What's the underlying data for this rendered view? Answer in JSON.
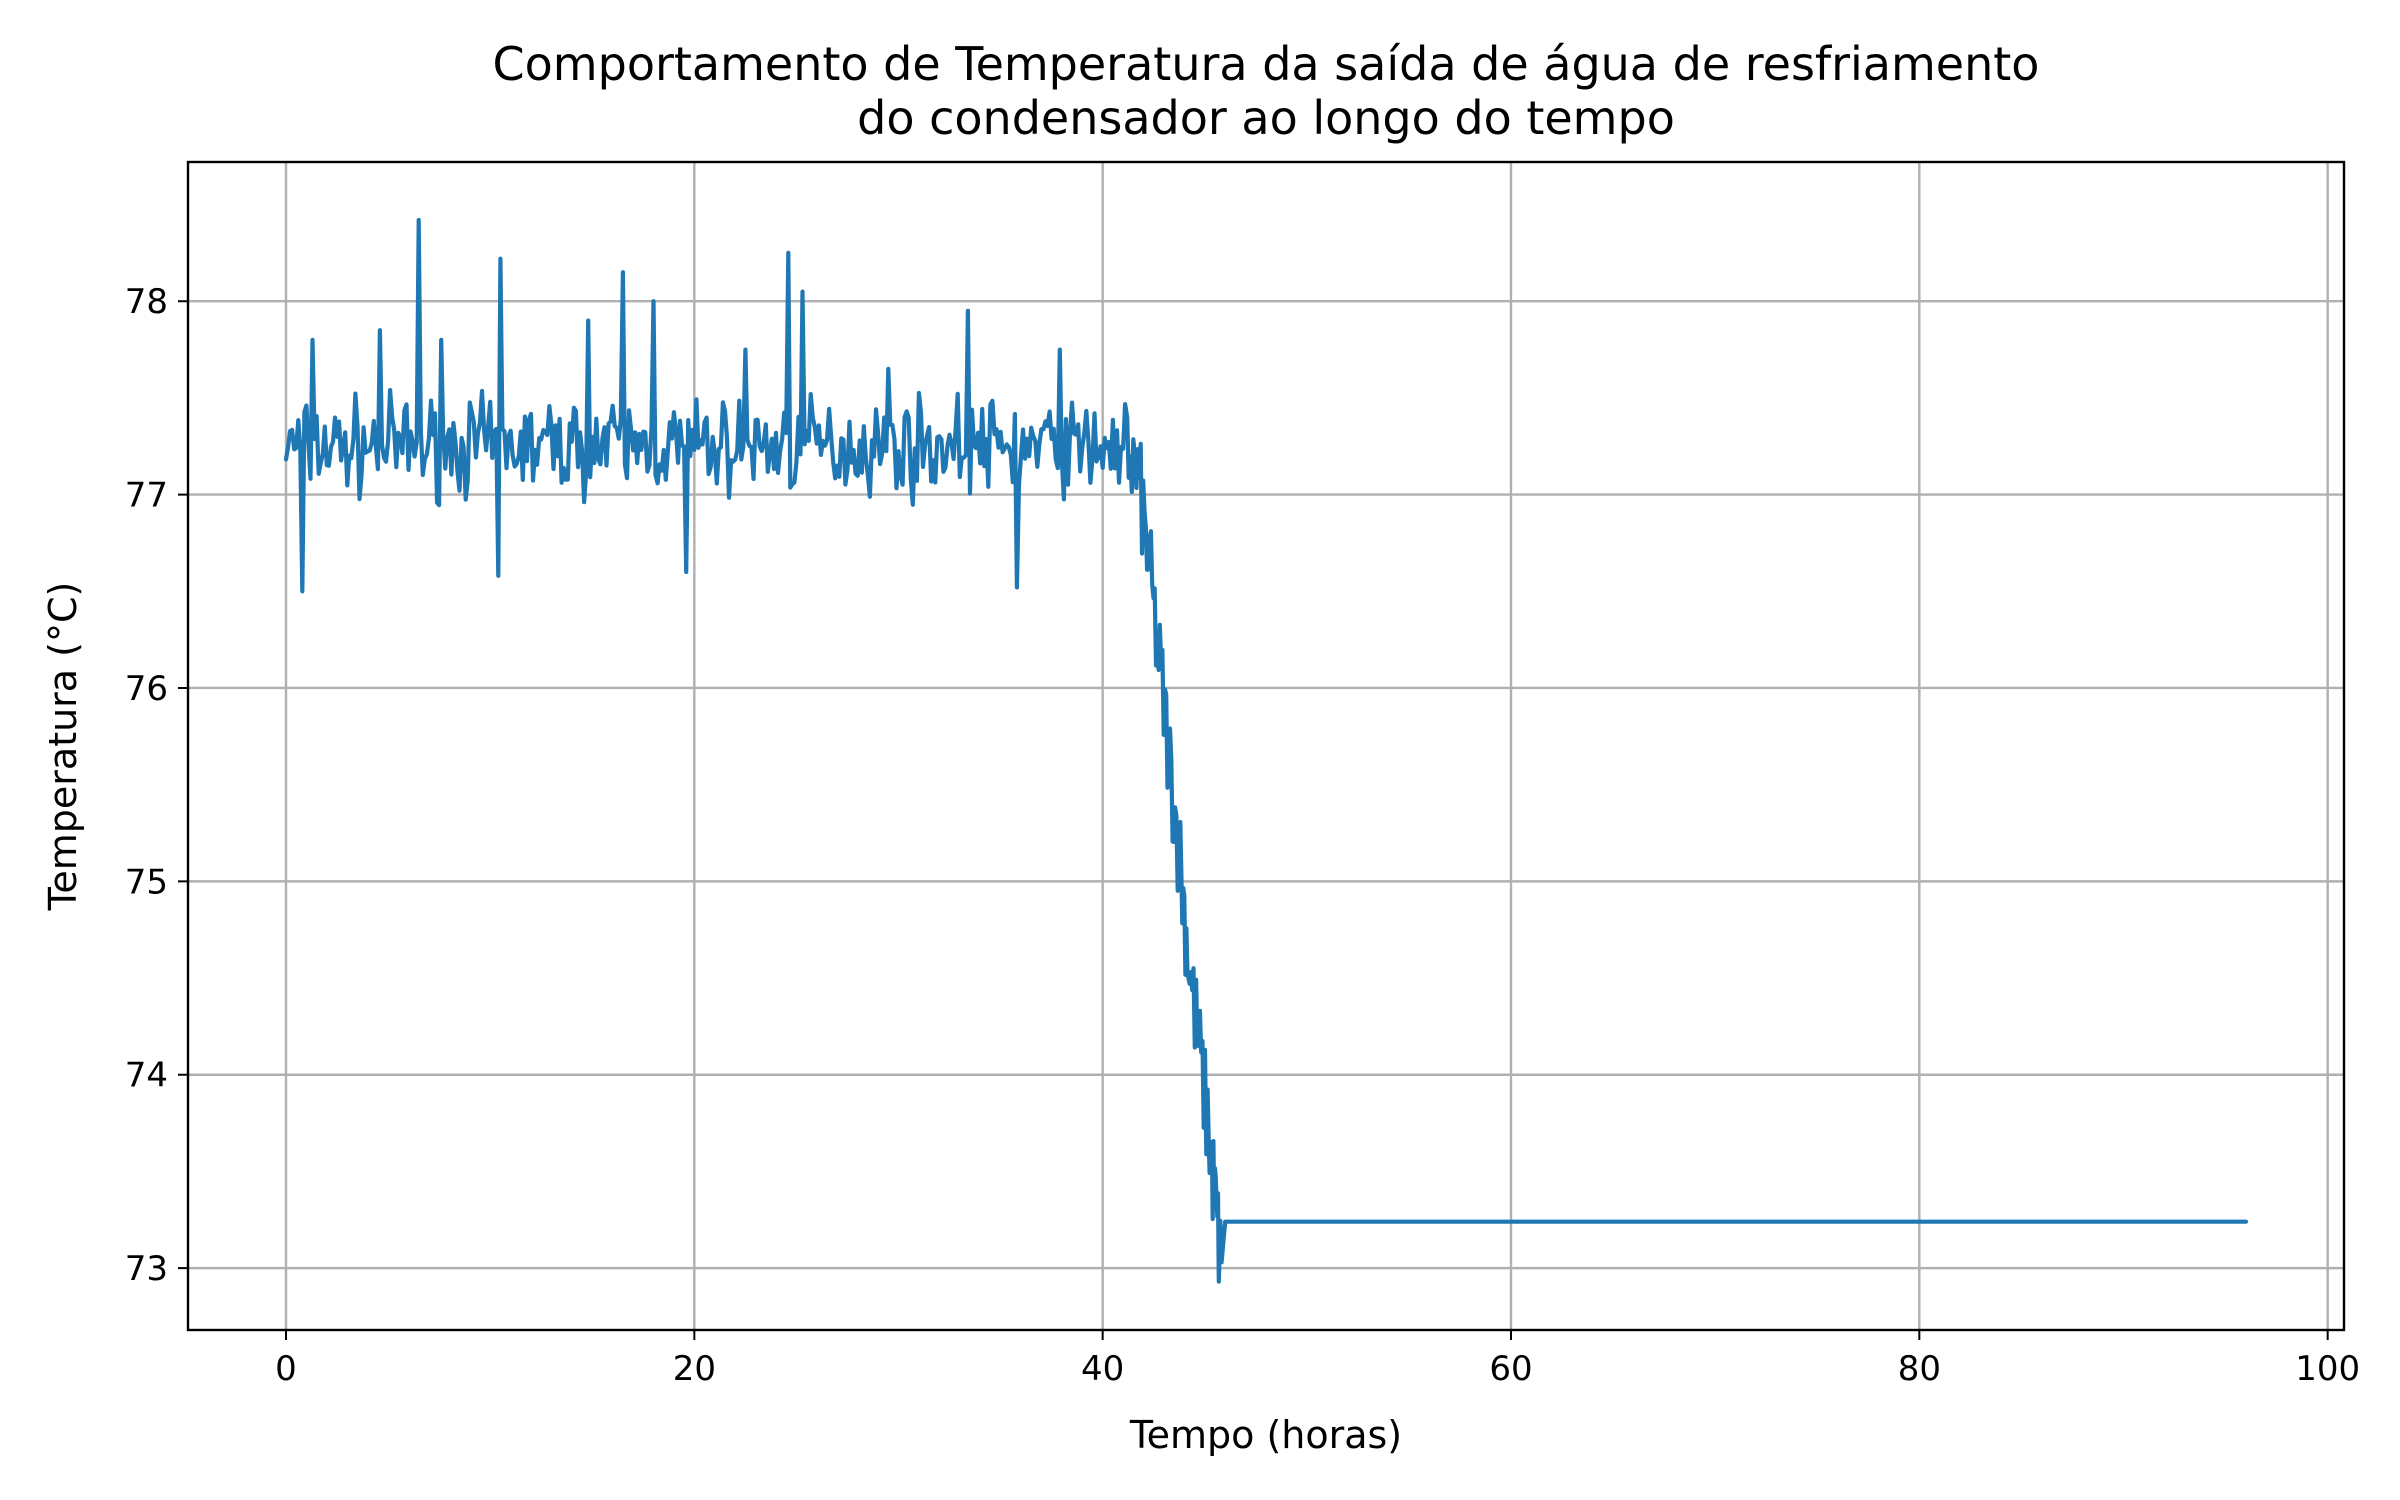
{
  "chart_data": {
    "type": "line",
    "title_lines": [
      "Comportamento de Temperatura da saída de água de resfriamento",
      "do condensador ao longo do tempo"
    ],
    "xlabel": "Tempo (horas)",
    "ylabel": "Temperatura (°C)",
    "xlim": [
      -4.8,
      100.8
    ],
    "ylim": [
      72.68,
      78.72
    ],
    "x_ticks": [
      0,
      20,
      40,
      60,
      80,
      100
    ],
    "y_ticks": [
      73,
      74,
      75,
      76,
      77,
      78
    ],
    "grid": true,
    "legend": "none",
    "colors": {
      "line": "#1f77b4"
    },
    "series": [
      {
        "noise": {
          "x_start": 0,
          "x_end": 41.2,
          "step": 0.1,
          "mean": 77.25,
          "amplitude": 0.22,
          "peaks": [
            [
              0.8,
              77.75
            ],
            [
              1.3,
              77.8
            ],
            [
              0.75,
              76.5
            ],
            [
              4.6,
              77.85
            ],
            [
              6.5,
              78.42
            ],
            [
              10.5,
              78.22
            ],
            [
              10.4,
              76.58
            ],
            [
              16.5,
              78.15
            ],
            [
              18.0,
              78.0
            ],
            [
              19.6,
              76.6
            ],
            [
              24.6,
              78.25
            ],
            [
              25.3,
              78.05
            ],
            [
              33.4,
              77.95
            ],
            [
              35.8,
              76.52
            ],
            [
              29.5,
              77.65
            ],
            [
              37.9,
              77.75
            ],
            [
              14.8,
              77.9
            ],
            [
              7.6,
              77.8
            ],
            [
              22.5,
              77.75
            ]
          ]
        },
        "decline": [
          [
            41.2,
            77.25
          ],
          [
            41.8,
            77.05
          ],
          [
            42.3,
            76.6
          ],
          [
            42.8,
            76.1
          ],
          [
            43.3,
            75.6
          ],
          [
            43.8,
            75.1
          ],
          [
            44.2,
            74.6
          ],
          [
            44.7,
            74.15
          ],
          [
            45.2,
            73.7
          ],
          [
            45.5,
            73.35
          ],
          [
            45.8,
            73.0
          ],
          [
            46.0,
            73.24
          ]
        ],
        "decline_jitter": 0.28,
        "plateau": {
          "x_start": 46.0,
          "x_end": 96.0,
          "y": 73.24
        }
      }
    ]
  }
}
